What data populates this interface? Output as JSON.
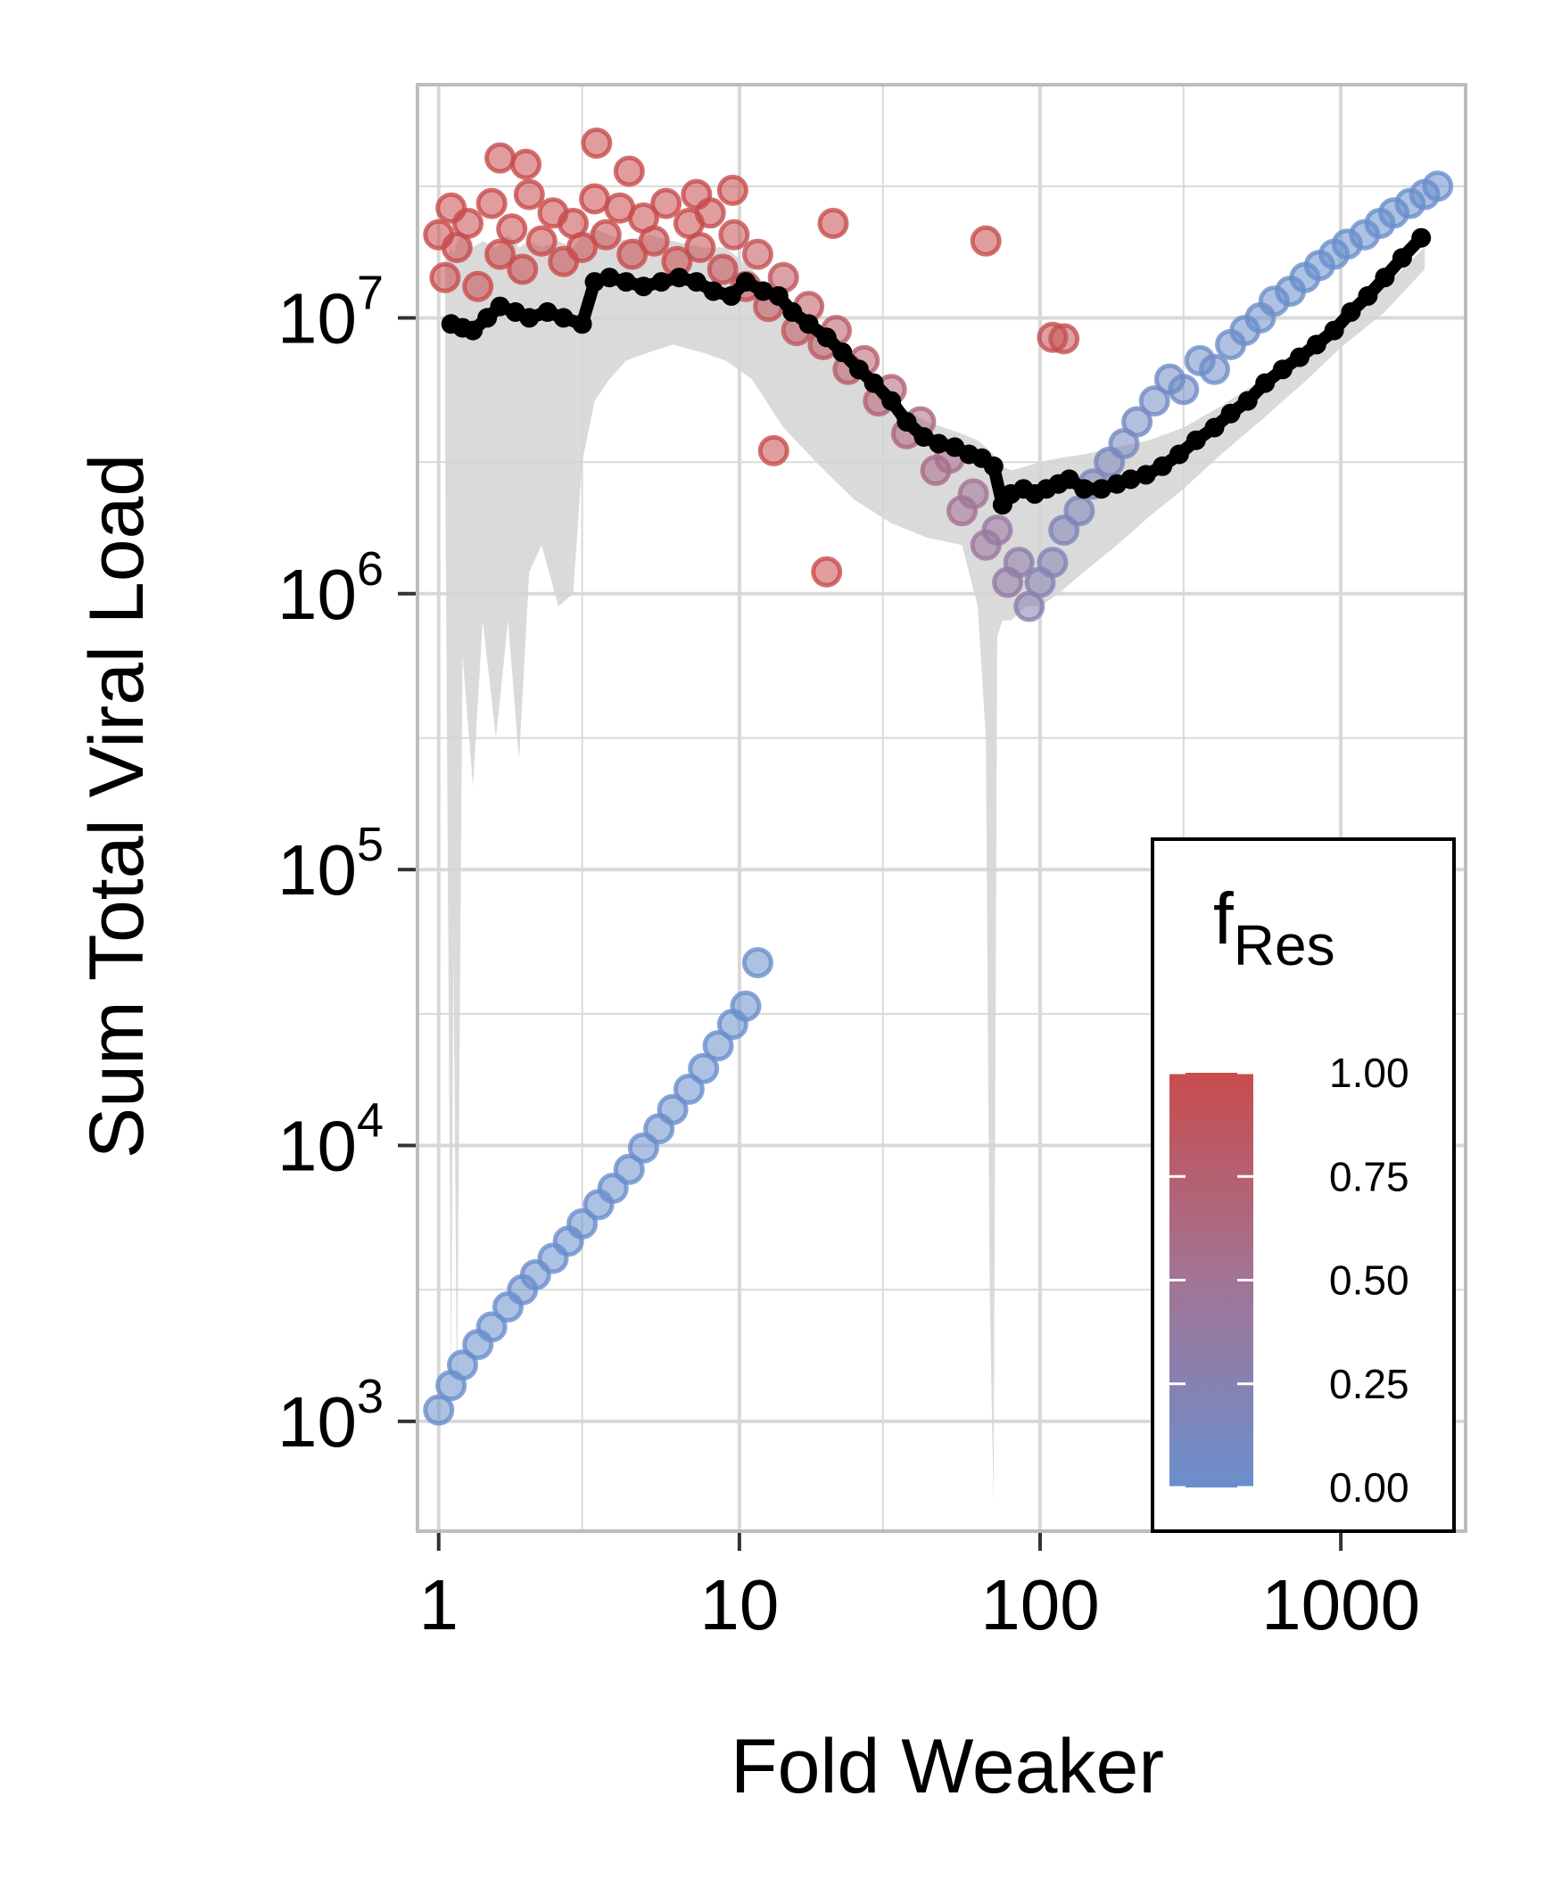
{
  "chart_data": {
    "type": "scatter",
    "title": "",
    "xlabel": "Fold Weaker",
    "ylabel": "Sum Total Viral Load",
    "x_scale": "log",
    "y_scale": "log",
    "xlim": [
      0.85,
      2600
    ],
    "ylim": [
      400,
      70000000
    ],
    "x_ticks": [
      1,
      10,
      100,
      1000
    ],
    "x_tick_labels": [
      "1",
      "10",
      "100",
      "1000"
    ],
    "y_ticks": [
      1000,
      10000,
      100000,
      1000000,
      10000000
    ],
    "y_tick_labels": [
      {
        "base": "10",
        "exp": "3"
      },
      {
        "base": "10",
        "exp": "4"
      },
      {
        "base": "10",
        "exp": "5"
      },
      {
        "base": "10",
        "exp": "6"
      },
      {
        "base": "10",
        "exp": "7"
      }
    ],
    "grid": true,
    "legend": {
      "title_main": "f",
      "title_sub": "Res",
      "position": "bottom-right",
      "type": "colorbar",
      "ticks": [
        "1.00",
        "0.75",
        "0.50",
        "0.25",
        "0.00"
      ],
      "tick_values": [
        1.0,
        0.75,
        0.5,
        0.25,
        0.0
      ],
      "color_low": "#6a8fcc",
      "color_high": "#c84c4c"
    },
    "colors": {
      "high_resistance": "#c84c4c",
      "mid_resistance": "#a27495",
      "low_resistance": "#6a8fcc",
      "median_line": "#000000",
      "range_band": "#d4d4d4",
      "grid": "#d9d9d9",
      "panel_border": "#bdbdbd"
    },
    "series": [
      {
        "kind": "points",
        "x": [
          1.0,
          1.1,
          1.2,
          1.35,
          1.5,
          1.7,
          1.9,
          2.1,
          2.4,
          2.7,
          3.0,
          3.4,
          3.8,
          4.3,
          4.8,
          5.4,
          6.0,
          6.8,
          7.6,
          8.5,
          9.5,
          10.5,
          11.5
        ],
        "y": [
          1100,
          1350,
          1600,
          1900,
          2200,
          2600,
          3000,
          3400,
          3900,
          4500,
          5200,
          6100,
          7000,
          8200,
          9800,
          11500,
          13500,
          16000,
          19000,
          23000,
          27500,
          32000,
          46000
        ],
        "f_res": [
          0,
          0,
          0,
          0,
          0,
          0,
          0,
          0,
          0,
          0,
          0,
          0,
          0,
          0,
          0,
          0,
          0,
          0,
          0,
          0,
          0,
          0,
          0
        ]
      },
      {
        "kind": "points",
        "x": [
          1.0,
          1.05,
          1.1,
          1.15,
          1.25,
          1.35,
          1.5,
          1.6,
          1.75,
          1.9,
          2.0,
          2.2,
          2.4,
          2.6,
          2.8,
          3.0,
          3.3,
          3.6,
          4.0,
          4.4,
          4.8,
          5.2,
          5.7,
          6.2,
          6.8,
          7.4,
          8.0,
          8.8,
          9.6,
          10.5,
          11.5,
          12.5,
          14.0,
          15.5,
          17.0,
          19.0,
          21.0,
          23.0,
          26.0,
          29.0,
          32.0,
          36.0,
          40.0,
          45.0,
          50.0,
          55.0,
          60.0,
          66.0,
          72.0,
          78.0,
          85.0,
          92.0,
          100.0,
          110.0,
          120.0,
          135.0,
          150.0,
          170.0,
          190.0,
          210.0,
          240.0,
          270.0,
          300.0,
          340.0,
          380.0,
          430.0,
          480.0,
          540.0,
          600.0,
          680.0,
          760.0,
          850.0,
          950.0,
          1050.0,
          1200.0,
          1350.0,
          1500.0,
          1700.0,
          1900.0,
          2100.0
        ],
        "y": [
          20000000,
          14000000,
          25000000,
          18000000,
          22000000,
          13000000,
          26000000,
          17000000,
          21000000,
          15000000,
          28000000,
          19000000,
          24000000,
          16000000,
          22000000,
          18000000,
          27000000,
          20000000,
          25000000,
          17000000,
          23000000,
          19000000,
          26000000,
          16000000,
          22000000,
          18000000,
          24000000,
          15000000,
          20000000,
          13000000,
          17000000,
          11000000,
          14000000,
          9000000,
          11000000,
          8000000,
          9000000,
          6500000,
          7000000,
          5000000,
          5500000,
          3800000,
          4200000,
          2800000,
          3100000,
          2000000,
          2300000,
          1500000,
          1700000,
          1100000,
          1300000,
          900000,
          1100000,
          1300000,
          1700000,
          2000000,
          2500000,
          3000000,
          3500000,
          4200000,
          5000000,
          6000000,
          5500000,
          7000000,
          6500000,
          8000000,
          9000000,
          10000000,
          11500000,
          12500000,
          14000000,
          15500000,
          17000000,
          18500000,
          20000000,
          22000000,
          24000000,
          26000000,
          28000000,
          30000000
        ],
        "f_res": [
          1,
          1,
          1,
          1,
          1,
          1,
          1,
          1,
          1,
          1,
          1,
          1,
          1,
          1,
          1,
          1,
          1,
          1,
          1,
          1,
          1,
          1,
          1,
          1,
          1,
          0.98,
          0.97,
          0.96,
          0.95,
          0.94,
          0.93,
          0.92,
          0.9,
          0.88,
          0.86,
          0.84,
          0.82,
          0.8,
          0.77,
          0.74,
          0.71,
          0.68,
          0.64,
          0.6,
          0.56,
          0.52,
          0.48,
          0.44,
          0.4,
          0.36,
          0.32,
          0.28,
          0.25,
          0.22,
          0.2,
          0.18,
          0.16,
          0.14,
          0.12,
          0.1,
          0.08,
          0.07,
          0.06,
          0.05,
          0.04,
          0.03,
          0.02,
          0.02,
          0.01,
          0.01,
          0,
          0,
          0,
          0,
          0,
          0,
          0,
          0,
          0,
          0
        ]
      },
      {
        "kind": "outliers",
        "x": [
          1.6,
          1.95,
          3.35,
          4.3,
          7.2,
          13.0,
          19.5,
          66.0,
          110.0,
          120.0,
          9.5,
          20.5
        ],
        "y": [
          38000000,
          36000000,
          43000000,
          34000000,
          28000000,
          3300000,
          1200000,
          19000000,
          8500000,
          8400000,
          29000000,
          22000000
        ],
        "f_res": [
          1,
          1,
          1,
          1,
          1,
          1,
          1,
          1,
          0.95,
          0.95,
          1,
          1
        ]
      },
      {
        "kind": "median_line",
        "x": [
          1.1,
          1.2,
          1.3,
          1.45,
          1.6,
          1.8,
          2.0,
          2.3,
          2.6,
          3.0,
          3.3,
          3.7,
          4.2,
          4.8,
          5.5,
          6.3,
          7.2,
          8.2,
          9.4,
          10.5,
          12.0,
          13.5,
          15.0,
          17.0,
          19.5,
          22.0,
          25.0,
          28.0,
          32.0,
          36.0,
          41.0,
          46.0,
          52.0,
          58.0,
          64.0,
          70.0,
          75.0,
          80.0,
          88.0,
          96.0,
          105.0,
          115.0,
          125.0,
          140.0,
          160.0,
          180.0,
          200.0,
          225.0,
          255.0,
          290.0,
          330.0,
          380.0,
          430.0,
          490.0,
          560.0,
          640.0,
          730.0,
          830.0,
          950.0,
          1080.0,
          1230.0,
          1400.0,
          1600.0,
          1850.0
        ],
        "y": [
          9500000,
          9200000,
          9000000,
          10000000,
          11000000,
          10500000,
          10000000,
          10500000,
          10000000,
          9500000,
          13500000,
          14000000,
          13500000,
          13000000,
          13500000,
          14000000,
          13500000,
          12500000,
          12000000,
          13500000,
          12500000,
          12000000,
          10500000,
          9500000,
          8500000,
          7500000,
          6500000,
          5800000,
          5000000,
          4200000,
          3700000,
          3500000,
          3400000,
          3200000,
          3100000,
          2900000,
          2100000,
          2300000,
          2400000,
          2300000,
          2400000,
          2500000,
          2600000,
          2400000,
          2400000,
          2500000,
          2600000,
          2700000,
          2900000,
          3200000,
          3600000,
          4000000,
          4500000,
          5000000,
          5800000,
          6500000,
          7200000,
          8000000,
          9000000,
          10500000,
          12000000,
          14000000,
          16500000,
          19500000
        ]
      },
      {
        "kind": "range_band",
        "x": [
          1.05,
          1.1,
          1.12,
          1.15,
          1.2,
          1.3,
          1.4,
          1.55,
          1.7,
          1.85,
          2.0,
          2.2,
          2.5,
          2.8,
          3.0,
          3.3,
          3.7,
          4.2,
          5.0,
          6.0,
          7.5,
          9.0,
          11.0,
          14.0,
          18.0,
          24.0,
          32.0,
          42.0,
          55.0,
          62.0,
          66.0,
          68.0,
          70.0,
          72.0,
          75.0,
          80.0,
          90.0,
          100.0,
          115.0,
          140.0,
          180.0,
          230.0,
          300.0,
          400.0,
          550.0,
          750.0,
          1000.0,
          1400.0,
          1900.0
        ],
        "lower": [
          4000000,
          1300,
          50000,
          1150,
          600000,
          200000,
          800000,
          300000,
          800000,
          250000,
          1200000,
          1500000,
          900000,
          1000000,
          3000000,
          5000000,
          6000000,
          7000000,
          7500000,
          8000000,
          7500000,
          7000000,
          6000000,
          4000000,
          3000000,
          2200000,
          1800000,
          1600000,
          1500000,
          900000,
          300000,
          3000,
          500,
          700000,
          800000,
          800000,
          900000,
          900000,
          1000000,
          1200000,
          1500000,
          1900000,
          2400000,
          3200000,
          4300000,
          5800000,
          7800000,
          10500000,
          15000000
        ],
        "upper": [
          16000000,
          18000000,
          17000000,
          19000000,
          20000000,
          18000000,
          19000000,
          18000000,
          20000000,
          18000000,
          19000000,
          18000000,
          19000000,
          18000000,
          20000000,
          21000000,
          20000000,
          19000000,
          20000000,
          19000000,
          18000000,
          18000000,
          15000000,
          11000000,
          8500000,
          6500000,
          5000000,
          4200000,
          3800000,
          3600000,
          3400000,
          3300000,
          3200000,
          3000000,
          2900000,
          2800000,
          2900000,
          3000000,
          3100000,
          3200000,
          3400000,
          3600000,
          4000000,
          4800000,
          6000000,
          7500000,
          9500000,
          13000000,
          18000000
        ]
      }
    ]
  }
}
